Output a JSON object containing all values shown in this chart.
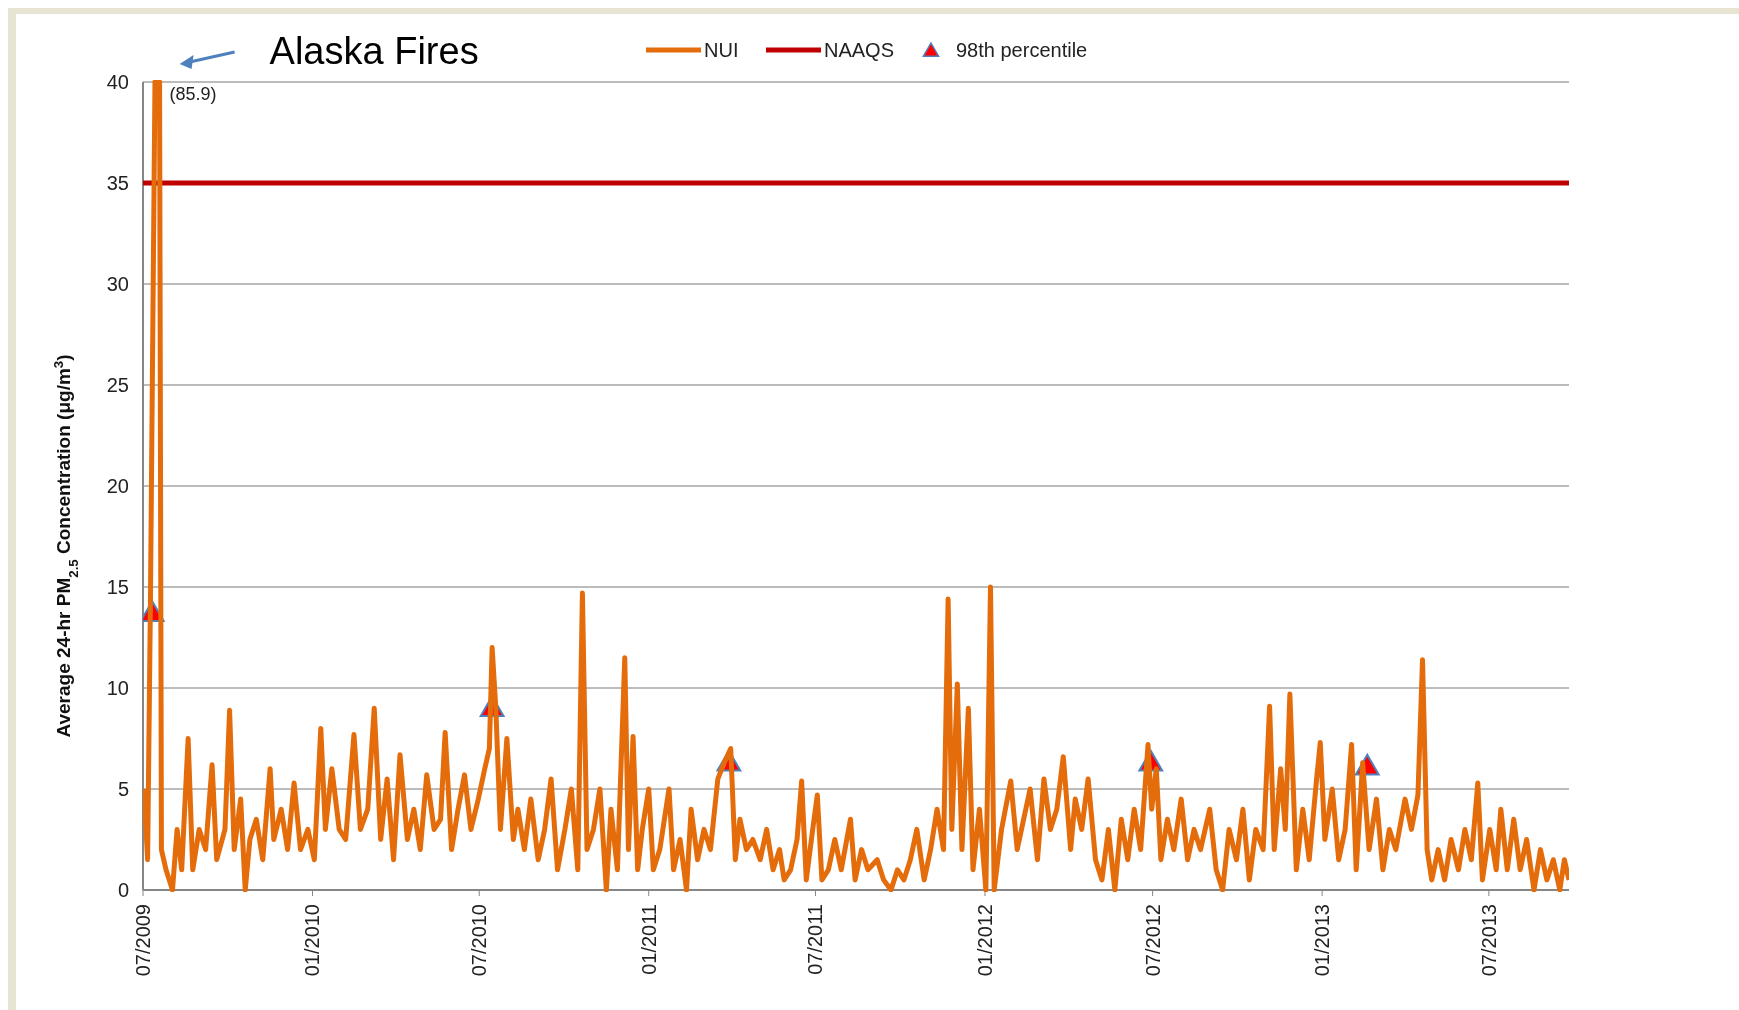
{
  "chart_data": {
    "type": "line",
    "ylabel": "Average 24-hr PM$_{2.5}$ Concentration (μg/m$^{3}$)",
    "xlim": [
      "2009-07-01",
      "2013-09-26"
    ],
    "xticks": [
      {
        "value": "2009-07-01",
        "label": "07/2009"
      },
      {
        "value": "2010-01-01",
        "label": "01/2010"
      },
      {
        "value": "2010-07-01",
        "label": "07/2010"
      },
      {
        "value": "2011-01-01",
        "label": "01/2011"
      },
      {
        "value": "2011-07-01",
        "label": "07/2011"
      },
      {
        "value": "2012-01-01",
        "label": "01/2012"
      },
      {
        "value": "2012-07-01",
        "label": "07/2012"
      },
      {
        "value": "2013-01-01",
        "label": "01/2013"
      },
      {
        "value": "2013-07-01",
        "label": "07/2013"
      }
    ],
    "ylim": [
      0,
      40
    ],
    "yticks": [
      0,
      5,
      10,
      15,
      20,
      25,
      30,
      35,
      40
    ],
    "grid": "y",
    "legend": "top",
    "line_style": "solid",
    "series": [
      {
        "name": "NUI",
        "color": "#e46c0a",
        "marker": "none",
        "x": [
          "2009-07-02",
          "2009-07-06",
          "2009-07-09",
          "2009-07-14",
          "2009-07-19",
          "2009-07-21",
          "2009-07-26",
          "2009-08-02",
          "2009-08-07",
          "2009-08-12",
          "2009-08-19",
          "2009-08-24",
          "2009-08-31",
          "2009-09-07",
          "2009-09-14",
          "2009-09-19",
          "2009-09-28",
          "2009-10-03",
          "2009-10-08",
          "2009-10-15",
          "2009-10-20",
          "2009-10-25",
          "2009-11-01",
          "2009-11-08",
          "2009-11-16",
          "2009-11-20",
          "2009-11-28",
          "2009-12-05",
          "2009-12-12",
          "2009-12-19",
          "2009-12-27",
          "2010-01-03",
          "2010-01-10",
          "2010-01-15",
          "2010-01-22",
          "2010-01-30",
          "2010-02-06",
          "2010-02-15",
          "2010-02-22",
          "2010-03-02",
          "2010-03-09",
          "2010-03-16",
          "2010-03-23",
          "2010-03-30",
          "2010-04-06",
          "2010-04-14",
          "2010-04-21",
          "2010-04-28",
          "2010-05-05",
          "2010-05-13",
          "2010-05-20",
          "2010-05-25",
          "2010-06-01",
          "2010-06-08",
          "2010-06-15",
          "2010-06-22",
          "2010-06-30",
          "2010-07-07",
          "2010-07-12",
          "2010-07-15",
          "2010-07-19",
          "2010-07-24",
          "2010-07-31",
          "2010-08-07",
          "2010-08-12",
          "2010-08-19",
          "2010-08-26",
          "2010-09-03",
          "2010-09-10",
          "2010-09-17",
          "2010-09-24",
          "2010-10-02",
          "2010-10-09",
          "2010-10-16",
          "2010-10-21",
          "2010-10-26",
          "2010-11-02",
          "2010-11-09",
          "2010-11-16",
          "2010-11-21",
          "2010-11-28",
          "2010-12-06",
          "2010-12-10",
          "2010-12-15",
          "2010-12-20",
          "2010-12-25",
          "2011-01-01",
          "2011-01-06",
          "2011-01-13",
          "2011-01-23",
          "2011-01-28",
          "2011-02-04",
          "2011-02-11",
          "2011-02-16",
          "2011-02-23",
          "2011-03-02",
          "2011-03-09",
          "2011-03-17",
          "2011-03-24",
          "2011-03-31",
          "2011-04-05",
          "2011-04-10",
          "2011-04-17",
          "2011-04-24",
          "2011-05-02",
          "2011-05-09",
          "2011-05-16",
          "2011-05-23",
          "2011-05-28",
          "2011-06-04",
          "2011-06-11",
          "2011-06-16",
          "2011-06-21",
          "2011-06-28",
          "2011-07-03",
          "2011-07-08",
          "2011-07-15",
          "2011-07-22",
          "2011-07-29",
          "2011-08-08",
          "2011-08-13",
          "2011-08-20",
          "2011-08-27",
          "2011-09-06",
          "2011-09-13",
          "2011-09-21",
          "2011-09-28",
          "2011-10-05",
          "2011-10-12",
          "2011-10-19",
          "2011-10-27",
          "2011-11-03",
          "2011-11-10",
          "2011-11-17",
          "2011-11-22",
          "2011-11-26",
          "2011-12-02",
          "2011-12-07",
          "2011-12-14",
          "2011-12-19",
          "2011-12-26",
          "2012-01-02",
          "2012-01-07",
          "2012-01-11",
          "2012-01-19",
          "2012-01-29",
          "2012-02-05",
          "2012-02-12",
          "2012-02-19",
          "2012-02-27",
          "2012-03-05",
          "2012-03-12",
          "2012-03-19",
          "2012-03-26",
          "2012-04-03",
          "2012-04-08",
          "2012-04-15",
          "2012-04-22",
          "2012-04-30",
          "2012-05-07",
          "2012-05-14",
          "2012-05-21",
          "2012-05-28",
          "2012-06-04",
          "2012-06-11",
          "2012-06-18",
          "2012-06-26",
          "2012-06-30",
          "2012-07-05",
          "2012-07-10",
          "2012-07-17",
          "2012-07-24",
          "2012-08-01",
          "2012-08-08",
          "2012-08-15",
          "2012-08-22",
          "2012-09-01",
          "2012-09-08",
          "2012-09-15",
          "2012-09-22",
          "2012-09-30",
          "2012-10-07",
          "2012-10-14",
          "2012-10-21",
          "2012-10-29",
          "2012-11-05",
          "2012-11-10",
          "2012-11-17",
          "2012-11-22",
          "2012-11-27",
          "2012-12-04",
          "2012-12-11",
          "2012-12-18",
          "2012-12-26",
          "2012-12-30",
          "2013-01-04",
          "2013-01-12",
          "2013-01-19",
          "2013-01-26",
          "2013-02-02",
          "2013-02-07",
          "2013-02-14",
          "2013-02-21",
          "2013-03-01",
          "2013-03-08",
          "2013-03-15",
          "2013-03-22",
          "2013-04-01",
          "2013-04-08",
          "2013-04-15",
          "2013-04-20",
          "2013-04-25",
          "2013-04-30",
          "2013-05-07",
          "2013-05-14",
          "2013-05-21",
          "2013-05-29",
          "2013-06-05",
          "2013-06-12",
          "2013-06-19",
          "2013-06-24",
          "2013-07-02",
          "2013-07-09",
          "2013-07-14",
          "2013-07-21",
          "2013-07-28",
          "2013-08-04",
          "2013-08-11",
          "2013-08-19",
          "2013-08-26",
          "2013-09-02",
          "2013-09-09",
          "2013-09-16",
          "2013-09-21",
          "2013-09-26"
        ],
        "values": [
          5,
          1.5,
          14,
          40,
          40,
          2,
          1,
          0,
          3,
          1,
          7.5,
          1,
          3,
          2,
          6.2,
          1.5,
          3,
          8.9,
          2,
          4.5,
          0,
          2.5,
          3.5,
          1.5,
          6,
          2.5,
          4,
          2,
          5.3,
          2,
          3,
          1.5,
          8,
          3,
          6,
          3,
          2.5,
          7.7,
          3,
          4,
          9,
          2.5,
          5.5,
          1.5,
          6.7,
          2.5,
          4,
          2,
          5.7,
          3,
          3.5,
          7.8,
          2,
          4,
          5.7,
          3,
          4.5,
          6,
          7,
          12,
          9,
          3,
          7.5,
          2.5,
          4,
          2,
          4.5,
          1.5,
          3,
          5.5,
          1,
          3,
          5,
          1,
          14.7,
          2,
          3,
          5,
          0,
          4,
          1,
          11.5,
          2,
          7.6,
          1,
          3,
          5,
          1,
          2,
          5,
          1,
          2.5,
          0,
          4,
          1.5,
          3,
          2,
          5.5,
          6.3,
          7,
          1.5,
          3.5,
          2,
          2.5,
          1.5,
          3,
          1,
          2,
          0.5,
          1,
          2.5,
          5.4,
          0.5,
          3,
          4.7,
          0.5,
          1,
          2.5,
          1,
          3.5,
          0.5,
          2,
          1,
          1.5,
          0.5,
          0,
          1,
          0.5,
          1.5,
          3,
          0.5,
          2,
          4,
          2,
          14.4,
          3,
          10.2,
          2,
          9,
          1,
          4,
          0,
          15,
          0,
          3,
          5.4,
          2,
          3.5,
          5,
          1.5,
          5.5,
          3,
          4,
          6.6,
          2,
          4.5,
          3,
          5.5,
          1.5,
          0.5,
          3,
          0,
          3.5,
          1.5,
          4,
          2,
          7.2,
          4,
          6,
          1.5,
          3.5,
          2,
          4.5,
          1.5,
          3,
          2,
          4,
          1,
          0,
          3,
          1.5,
          4,
          0.5,
          3,
          2,
          9.1,
          2,
          6,
          3,
          9.7,
          1,
          4,
          1.5,
          5.5,
          7.3,
          2.5,
          5,
          1.5,
          3,
          7.2,
          1,
          6.3,
          2,
          4.5,
          1,
          3,
          2,
          4.5,
          3,
          4.7,
          11.4,
          2,
          0.5,
          2,
          0.5,
          2.5,
          1,
          3,
          1.5,
          5.3,
          0.5,
          3,
          1,
          4,
          1,
          3.5,
          1,
          2.5,
          0,
          2,
          0.5,
          1.5,
          0,
          1.5,
          0.5
        ]
      },
      {
        "name": "98th percentile",
        "color": "#ff0000",
        "type": "scatter",
        "marker": "triangle",
        "x": [
          "2009-07-11",
          "2010-07-15",
          "2011-03-29",
          "2012-06-29",
          "2013-02-19"
        ],
        "values": [
          13.7,
          9,
          6.3,
          6.3,
          6.1
        ]
      }
    ],
    "ref_lines": [
      {
        "axis": "y",
        "value": 35,
        "label": "NAAQS",
        "color": "#c00000"
      }
    ],
    "annotations": [
      {
        "text": "Alaska Fires",
        "x": "2009-07-19",
        "y": 40
      },
      {
        "text": "(85.9)",
        "x": "2009-07-19",
        "y": 40
      }
    ]
  }
}
